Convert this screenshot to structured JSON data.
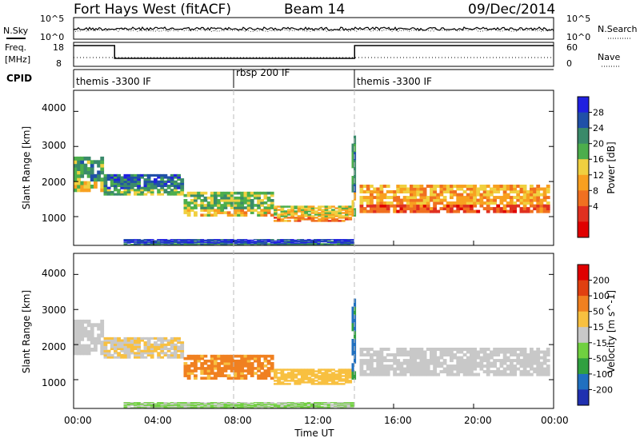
{
  "header": {
    "station": "Fort Hays West (fitACF)",
    "beam": "Beam 14",
    "date": "09/Dec/2014"
  },
  "noise_panel": {
    "left_label": "N.Sky",
    "right_label": "N.Search",
    "left_ticks": [
      "10^5",
      "10^0"
    ],
    "right_ticks": [
      "10^5",
      "10^0"
    ]
  },
  "freq_panel": {
    "left_label_1": "Freq.",
    "left_label_2": "[MHz]",
    "right_label": "Nave",
    "left_ticks": [
      "18",
      "8"
    ],
    "right_ticks": [
      "60",
      "0"
    ],
    "freq_steps": [
      {
        "start_hour": 0.0,
        "end_hour": 2.05,
        "freq_level": "high"
      },
      {
        "start_hour": 2.05,
        "end_hour": 14.05,
        "freq_level": "low"
      },
      {
        "start_hour": 14.05,
        "end_hour": 24.0,
        "freq_level": "high"
      }
    ]
  },
  "cpid_panel": {
    "label": "CPID",
    "segments": [
      {
        "start_hour": 0.0,
        "label": "themis -3300 IF"
      },
      {
        "start_hour": 8.0,
        "label": "rbsp 200 IF"
      },
      {
        "start_hour": 14.05,
        "label": "themis -3300 IF"
      }
    ]
  },
  "power_panel": {
    "ylabel": "Slant Range [km]",
    "yticks": [
      "4000",
      "3000",
      "2000",
      "1000"
    ],
    "colorbar_label": "Power [dB]",
    "colorbar_ticks": [
      "28",
      "24",
      "20",
      "16",
      "12",
      "8",
      "4"
    ],
    "colors": [
      "#2020e0",
      "#2050a8",
      "#3a8a6a",
      "#4cae4c",
      "#f0d040",
      "#f8a020",
      "#f07020",
      "#e03020",
      "#e00000"
    ]
  },
  "velocity_panel": {
    "ylabel": "Slant Range [km]",
    "yticks": [
      "4000",
      "3000",
      "2000",
      "1000"
    ],
    "colorbar_label": "Velocity [m s^-1]",
    "colorbar_ticks": [
      "200",
      "100",
      "50",
      "15",
      "-15",
      "-50",
      "-100",
      "-200"
    ],
    "colors": [
      "#2030b0",
      "#2070c0",
      "#30a040",
      "#70d040",
      "#c8c8c8",
      "#f8c040",
      "#f08020",
      "#e04010",
      "#e00000"
    ]
  },
  "x_axis": {
    "label": "Time UT",
    "ticks": [
      "00:00",
      "04:00",
      "08:00",
      "12:00",
      "16:00",
      "20:00",
      "00:00"
    ]
  },
  "chart_data": {
    "type": "heatmap",
    "title": "Fort Hays West (fitACF)",
    "beam": "Beam 14",
    "date": "09/Dec/2014",
    "xlabel": "Time UT",
    "ylabel": "Slant Range [km]",
    "x_range_hours": [
      0,
      24
    ],
    "y_range_km": [
      180,
      4600
    ],
    "echo_regions": [
      {
        "start_hour": 0.0,
        "end_hour": 1.5,
        "range_low_km": 1700,
        "range_high_km": 2700,
        "power_db": 12,
        "velocity_ms": 0
      },
      {
        "start_hour": 1.5,
        "end_hour": 5.5,
        "range_low_km": 1600,
        "range_high_km": 2200,
        "power_db": 8,
        "velocity_ms": -15
      },
      {
        "start_hour": 5.5,
        "end_hour": 10.0,
        "range_low_km": 1000,
        "range_high_km": 1700,
        "power_db": 14,
        "velocity_ms": -60
      },
      {
        "start_hour": 10.0,
        "end_hour": 13.9,
        "range_low_km": 850,
        "range_high_km": 1300,
        "power_db": 18,
        "velocity_ms": -30
      },
      {
        "start_hour": 13.9,
        "end_hour": 14.1,
        "range_low_km": 1000,
        "range_high_km": 3300,
        "power_db": 10,
        "velocity_ms": 100
      },
      {
        "start_hour": 14.3,
        "end_hour": 23.8,
        "range_low_km": 1100,
        "range_high_km": 1900,
        "power_db": 22,
        "velocity_ms": 0
      },
      {
        "start_hour": 2.5,
        "end_hour": 14.0,
        "range_low_km": 180,
        "range_high_km": 350,
        "power_db": 4,
        "velocity_ms": 20
      }
    ],
    "cpid_transitions_hours": [
      8.0,
      14.05
    ]
  }
}
